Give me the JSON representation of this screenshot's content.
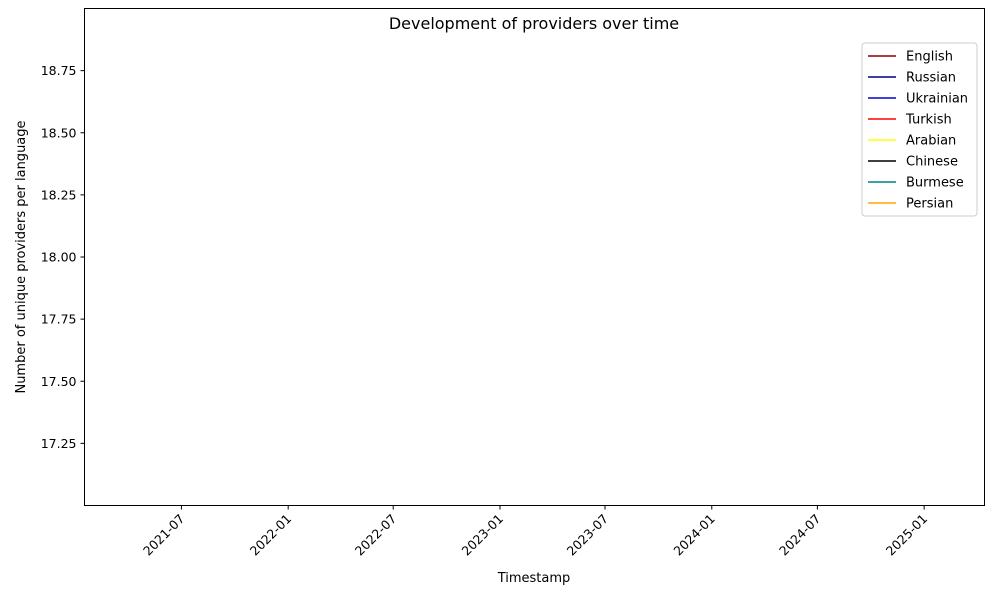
{
  "chart_data": {
    "type": "line",
    "title": "Development of providers over time",
    "xlabel": "Timestamp",
    "ylabel": "Number of unique providers per language",
    "x_ticks": [
      "2021-07",
      "2022-01",
      "2022-07",
      "2023-01",
      "2023-07",
      "2024-01",
      "2024-07",
      "2025-01"
    ],
    "y_ticks": [
      "17.25",
      "17.50",
      "17.75",
      "18.00",
      "18.25",
      "18.50",
      "18.75"
    ],
    "xlim": [
      "2021-01-15",
      "2025-04-15"
    ],
    "ylim": [
      17.0,
      19.0
    ],
    "grid": false,
    "legend_position": "top-right",
    "series": [
      {
        "name": "English",
        "color": "#8b0000",
        "points": []
      },
      {
        "name": "Russian",
        "color": "#00008b",
        "points": []
      },
      {
        "name": "Ukrainian",
        "color": "#0000cd",
        "points": []
      },
      {
        "name": "Turkish",
        "color": "#ff0000",
        "points": []
      },
      {
        "name": "Arabian",
        "color": "#ffff00",
        "points": []
      },
      {
        "name": "Chinese",
        "color": "#000000",
        "points": []
      },
      {
        "name": "Burmese",
        "color": "#008080",
        "points": []
      },
      {
        "name": "Persian",
        "color": "#ffa500",
        "points": []
      }
    ]
  }
}
